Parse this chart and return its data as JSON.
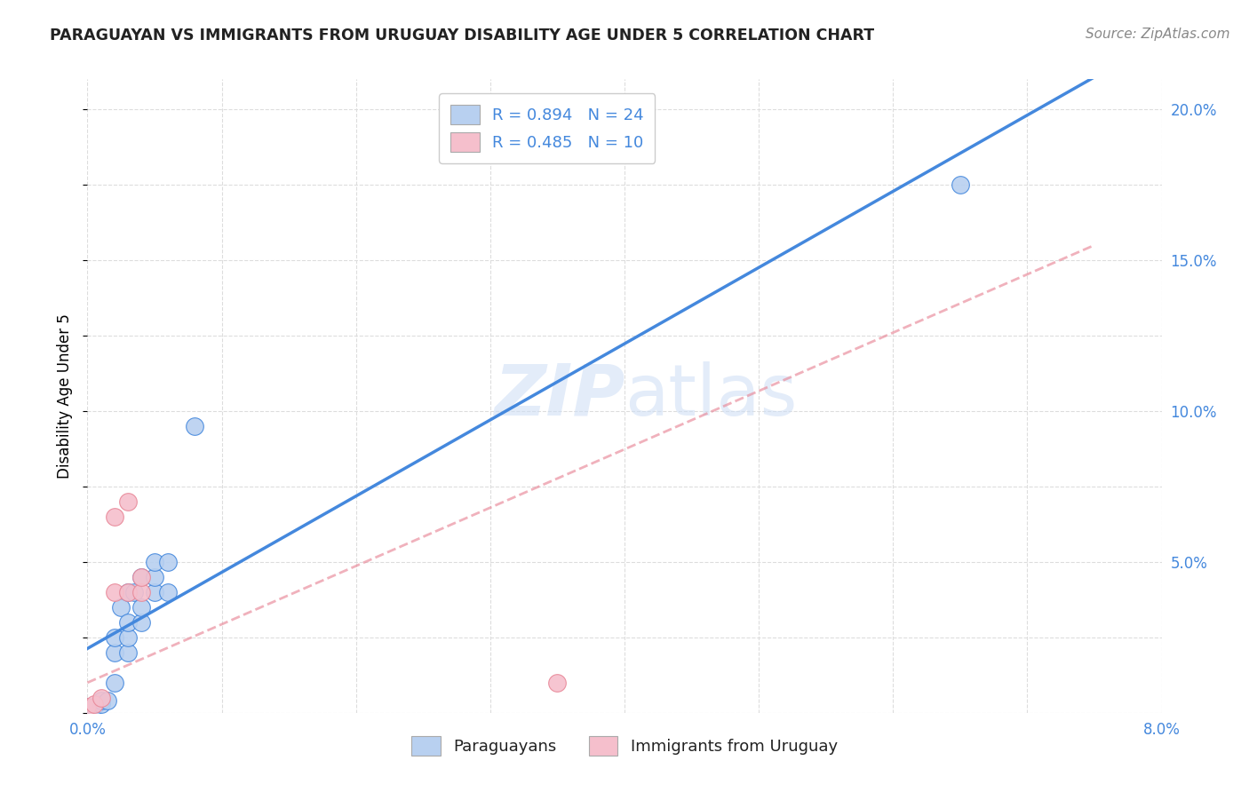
{
  "title": "PARAGUAYAN VS IMMIGRANTS FROM URUGUAY DISABILITY AGE UNDER 5 CORRELATION CHART",
  "source": "Source: ZipAtlas.com",
  "ylabel": "Disability Age Under 5",
  "x_ticks": [
    0.0,
    0.01,
    0.02,
    0.03,
    0.04,
    0.05,
    0.06,
    0.07,
    0.08
  ],
  "x_tick_labels": [
    "0.0%",
    "",
    "",
    "",
    "",
    "",
    "",
    "",
    "8.0%"
  ],
  "y_ticks_right": [
    0.0,
    0.05,
    0.1,
    0.15,
    0.2
  ],
  "y_tick_labels_right": [
    "",
    "5.0%",
    "10.0%",
    "15.0%",
    "20.0%"
  ],
  "xlim": [
    0.0,
    0.08
  ],
  "ylim": [
    0.0,
    0.21
  ],
  "paraguayan_x": [
    0.0,
    0.0005,
    0.001,
    0.001,
    0.0015,
    0.002,
    0.002,
    0.002,
    0.0025,
    0.003,
    0.003,
    0.003,
    0.003,
    0.0035,
    0.004,
    0.004,
    0.004,
    0.005,
    0.005,
    0.005,
    0.006,
    0.006,
    0.008,
    0.065
  ],
  "paraguayan_y": [
    0.002,
    0.002,
    0.003,
    0.004,
    0.004,
    0.01,
    0.02,
    0.025,
    0.035,
    0.02,
    0.025,
    0.03,
    0.04,
    0.04,
    0.03,
    0.035,
    0.045,
    0.04,
    0.045,
    0.05,
    0.04,
    0.05,
    0.095,
    0.175
  ],
  "uruguay_x": [
    0.0,
    0.0005,
    0.001,
    0.002,
    0.002,
    0.003,
    0.003,
    0.004,
    0.004,
    0.035
  ],
  "uruguay_y": [
    0.002,
    0.003,
    0.005,
    0.04,
    0.065,
    0.07,
    0.04,
    0.04,
    0.045,
    0.01
  ],
  "R_paraguayan": 0.894,
  "N_paraguayan": 24,
  "R_uruguay": 0.485,
  "N_uruguay": 10,
  "color_paraguayan": "#b8d0f0",
  "color_uruguay": "#f5bfcc",
  "line_color_paraguayan": "#4488dd",
  "line_color_uruguay": "#e88898",
  "watermark_color": "#ccddf5",
  "watermark_zip": "ZIP",
  "watermark_atlas": "atlas",
  "background_color": "#ffffff",
  "grid_color": "#dddddd",
  "title_color": "#222222",
  "tick_color": "#4488dd",
  "source_color": "#888888",
  "legend_label_color": "#4488dd",
  "bottom_legend_color": "#222222",
  "title_fontsize": 12.5,
  "source_fontsize": 11,
  "tick_fontsize": 12,
  "legend_fontsize": 13,
  "ylabel_fontsize": 12,
  "watermark_fontsize_zip": 58,
  "watermark_fontsize_atlas": 58
}
